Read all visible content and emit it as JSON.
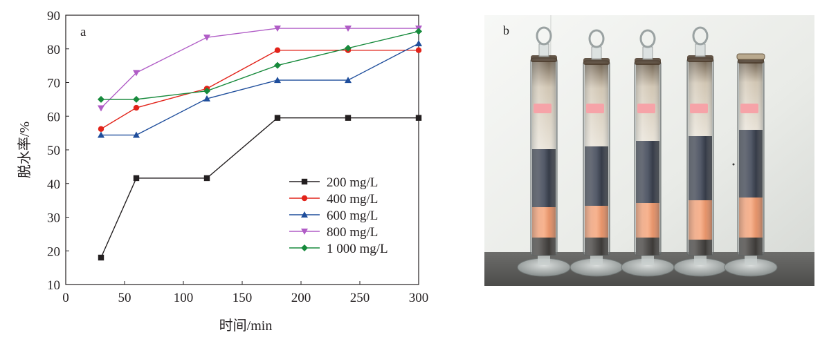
{
  "panel_a_label": "a",
  "panel_b_label": "b",
  "chart_data": {
    "type": "line",
    "xlabel": "时间/min",
    "ylabel": "脱水率/%",
    "xlim": [
      0,
      300
    ],
    "ylim": [
      10,
      90
    ],
    "xticks": [
      0,
      50,
      100,
      150,
      200,
      250,
      300
    ],
    "yticks": [
      10,
      20,
      30,
      40,
      50,
      60,
      70,
      80,
      90
    ],
    "grid": false,
    "legend_position": "bottom-right",
    "series": [
      {
        "name": "200 mg/L",
        "color": "#231f20",
        "marker": "square",
        "x": [
          30,
          60,
          120,
          180,
          240,
          300
        ],
        "y": [
          18,
          41.6,
          41.6,
          59.5,
          59.5,
          59.5
        ]
      },
      {
        "name": "400 mg/L",
        "color": "#e2231a",
        "marker": "circle",
        "x": [
          30,
          60,
          120,
          180,
          240,
          300
        ],
        "y": [
          56.2,
          62.5,
          68.2,
          79.6,
          79.6,
          79.6
        ]
      },
      {
        "name": "600 mg/L",
        "color": "#1f4e9c",
        "marker": "triangle-up",
        "x": [
          30,
          60,
          120,
          180,
          240,
          300
        ],
        "y": [
          54.4,
          54.4,
          65.2,
          70.7,
          70.7,
          81.6
        ]
      },
      {
        "name": "800 mg/L",
        "color": "#b05cc6",
        "marker": "triangle-down",
        "x": [
          30,
          60,
          120,
          180,
          240,
          300
        ],
        "y": [
          62.4,
          72.9,
          83.4,
          86.1,
          86.1,
          86.1
        ]
      },
      {
        "name": "1 000 mg/L",
        "color": "#178a3c",
        "marker": "diamond",
        "x": [
          30,
          60,
          120,
          180,
          240,
          300
        ],
        "y": [
          65,
          65,
          67.5,
          75.1,
          80.2,
          85.2
        ]
      }
    ]
  }
}
